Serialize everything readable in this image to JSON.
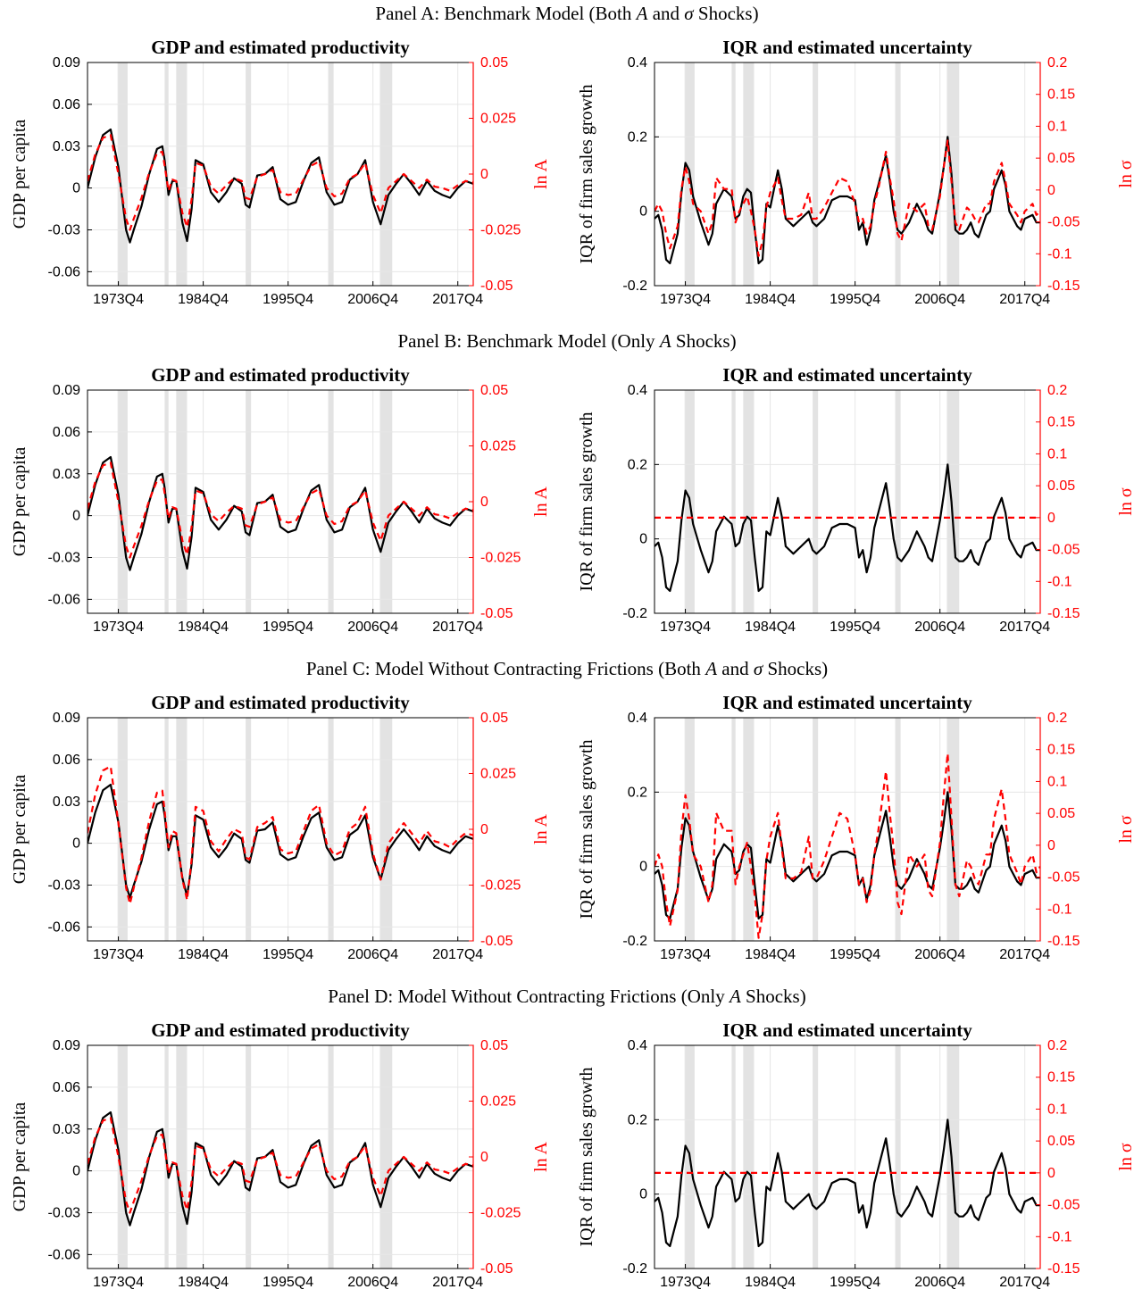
{
  "panels": [
    {
      "title": "Panel A: Benchmark Model (Both A and σ Shocks)",
      "left_red_dashed": "full",
      "right_red_dashed": "full"
    },
    {
      "title": "Panel B: Benchmark Model (Only A Shocks)",
      "left_red_dashed": "full",
      "right_red_dashed": "flat"
    },
    {
      "title": "Panel C: Model Without Contracting Frictions (Both A and σ Shocks)",
      "left_red_dashed": "amplified",
      "right_red_dashed": "amplified"
    },
    {
      "title": "Panel D: Model Without Contracting Frictions (Only A Shocks)",
      "left_red_dashed": "full",
      "right_red_dashed": "flat"
    }
  ],
  "colors": {
    "black_series": "#000000",
    "red_series": "#ff0000",
    "recession_shade": "#e3e3e3",
    "grid": "#e6e6e6"
  },
  "chart_data": [
    {
      "type": "line",
      "title": "GDP and estimated productivity",
      "ylabel": "GDP per capita",
      "ylabel_right": "ln A",
      "xlim": [
        1970.0,
        2020.0
      ],
      "ylim": [
        -0.07,
        0.09
      ],
      "ylim_right": [
        -0.05,
        0.05
      ],
      "x_ticks": [
        1974.0,
        1985.0,
        1996.0,
        2007.0,
        2018.0
      ],
      "x_tick_labels": [
        "1973Q4",
        "1984Q4",
        "1995Q4",
        "2006Q4",
        "2017Q4"
      ],
      "y_ticks": [
        0.09,
        0.06,
        0.03,
        0,
        -0.03,
        -0.06
      ],
      "y_tick_labels": [
        "0.09",
        "0.06",
        "0.03",
        "0",
        "-0.03",
        "-0.06"
      ],
      "y_ticks_right": [
        0.05,
        0.025,
        0,
        -0.025,
        -0.05
      ],
      "y_tick_labels_right": [
        "0.05",
        "0.025",
        "0",
        "-0.025",
        "-0.05"
      ],
      "recessions": [
        [
          1973.9,
          1975.2
        ],
        [
          1980.0,
          1980.5
        ],
        [
          1981.5,
          1982.9
        ],
        [
          1990.5,
          1991.2
        ],
        [
          2001.2,
          2001.9
        ],
        [
          2007.9,
          2009.5
        ]
      ],
      "grid": true,
      "series": [
        {
          "style": "solid",
          "axis": "left",
          "x": [
            1970.0,
            1971.0,
            1972.0,
            1973.0,
            1974.0,
            1975.0,
            1975.5,
            1976.0,
            1977.0,
            1978.0,
            1979.0,
            1979.7,
            1980.0,
            1980.5,
            1981.0,
            1981.5,
            1982.3,
            1982.9,
            1983.5,
            1984.0,
            1985.0,
            1986.0,
            1987.0,
            1988.0,
            1989.0,
            1990.0,
            1990.5,
            1991.0,
            1992.0,
            1993.0,
            1994.0,
            1995.0,
            1996.0,
            1997.0,
            1998.0,
            1999.0,
            2000.0,
            2001.0,
            2002.0,
            2003.0,
            2004.0,
            2005.0,
            2006.0,
            2007.0,
            2008.0,
            2009.0,
            2010.0,
            2011.0,
            2012.0,
            2013.0,
            2014.0,
            2015.0,
            2016.0,
            2017.0,
            2018.0,
            2019.0,
            2020.0
          ],
          "y": [
            0.0,
            0.022,
            0.038,
            0.042,
            0.015,
            -0.03,
            -0.039,
            -0.03,
            -0.013,
            0.01,
            0.028,
            0.03,
            0.02,
            -0.005,
            0.005,
            0.005,
            -0.025,
            -0.038,
            -0.015,
            0.02,
            0.017,
            -0.003,
            -0.01,
            -0.003,
            0.007,
            0.003,
            -0.012,
            -0.014,
            0.009,
            0.01,
            0.015,
            -0.008,
            -0.012,
            -0.01,
            0.005,
            0.018,
            0.022,
            -0.003,
            -0.012,
            -0.01,
            0.006,
            0.01,
            0.02,
            -0.01,
            -0.026,
            -0.005,
            0.003,
            0.01,
            0.003,
            -0.005,
            0.005,
            -0.002,
            -0.005,
            -0.007,
            0.0,
            0.005,
            0.003
          ]
        },
        {
          "style": "dashed",
          "axis": "left",
          "x": [
            1970.0,
            1971.0,
            1972.0,
            1973.0,
            1974.0,
            1975.0,
            1975.5,
            1976.0,
            1977.0,
            1978.0,
            1979.0,
            1979.7,
            1980.0,
            1980.5,
            1981.0,
            1981.5,
            1982.3,
            1982.9,
            1983.5,
            1984.0,
            1985.0,
            1986.0,
            1987.0,
            1988.0,
            1989.0,
            1990.0,
            1990.5,
            1991.0,
            1992.0,
            1993.0,
            1994.0,
            1995.0,
            1996.0,
            1997.0,
            1998.0,
            1999.0,
            2000.0,
            2001.0,
            2002.0,
            2003.0,
            2004.0,
            2005.0,
            2006.0,
            2007.0,
            2008.0,
            2009.0,
            2010.0,
            2011.0,
            2012.0,
            2013.0,
            2014.0,
            2015.0,
            2016.0,
            2017.0,
            2018.0,
            2019.0,
            2020.0
          ],
          "y": [
            0.005,
            0.024,
            0.036,
            0.038,
            0.01,
            -0.022,
            -0.03,
            -0.022,
            -0.007,
            0.011,
            0.025,
            0.026,
            0.016,
            -0.002,
            0.006,
            0.005,
            -0.018,
            -0.028,
            -0.008,
            0.018,
            0.016,
            0.001,
            -0.004,
            0.002,
            0.007,
            0.005,
            -0.007,
            -0.008,
            0.008,
            0.01,
            0.013,
            -0.003,
            -0.005,
            -0.004,
            0.006,
            0.016,
            0.019,
            0.0,
            -0.006,
            -0.004,
            0.007,
            0.01,
            0.018,
            -0.005,
            -0.018,
            0.0,
            0.005,
            0.01,
            0.005,
            0.0,
            0.006,
            0.001,
            0.0,
            -0.002,
            0.002,
            0.005,
            0.004
          ]
        }
      ]
    },
    {
      "type": "line",
      "title": "IQR and estimated uncertainty",
      "ylabel": "IQR of firm sales growth",
      "ylabel_right": "ln σ",
      "xlim": [
        1970.0,
        2020.0
      ],
      "ylim": [
        -0.2,
        0.4
      ],
      "ylim_right": [
        -0.15,
        0.2
      ],
      "x_ticks": [
        1974.0,
        1985.0,
        1996.0,
        2007.0,
        2018.0
      ],
      "x_tick_labels": [
        "1973Q4",
        "1984Q4",
        "1995Q4",
        "2006Q4",
        "2017Q4"
      ],
      "y_ticks": [
        0.4,
        0.2,
        0,
        -0.2
      ],
      "y_tick_labels": [
        "0.4",
        "0.2",
        "0",
        "-0.2"
      ],
      "y_ticks_right": [
        0.2,
        0.15,
        0.1,
        0.05,
        0,
        -0.05,
        -0.1,
        -0.15
      ],
      "y_tick_labels_right": [
        "0.2",
        "0.15",
        "0.1",
        "0.05",
        "0",
        "-0.05",
        "-0.1",
        "-0.15"
      ],
      "recessions": [
        [
          1973.9,
          1975.2
        ],
        [
          1980.0,
          1980.5
        ],
        [
          1981.5,
          1982.9
        ],
        [
          1990.5,
          1991.2
        ],
        [
          2001.2,
          2001.9
        ],
        [
          2007.9,
          2009.5
        ]
      ],
      "grid": true,
      "series": [
        {
          "style": "solid",
          "axis": "left",
          "x": [
            1970.0,
            1970.5,
            1971.0,
            1971.5,
            1972.0,
            1973.0,
            1973.5,
            1974.0,
            1974.5,
            1975.0,
            1976.0,
            1977.0,
            1977.5,
            1978.0,
            1979.0,
            1980.0,
            1980.5,
            1981.0,
            1981.5,
            1982.0,
            1982.5,
            1983.0,
            1983.5,
            1984.0,
            1984.5,
            1985.0,
            1986.0,
            1986.5,
            1987.0,
            1988.0,
            1989.0,
            1990.0,
            1990.5,
            1991.0,
            1992.0,
            1993.0,
            1994.0,
            1995.0,
            1996.0,
            1996.5,
            1997.0,
            1997.5,
            1998.0,
            1998.5,
            1999.0,
            2000.0,
            2000.5,
            2001.0,
            2001.5,
            2002.0,
            2003.0,
            2004.0,
            2005.0,
            2005.5,
            2006.0,
            2007.0,
            2007.5,
            2008.0,
            2008.5,
            2009.0,
            2009.5,
            2010.0,
            2010.5,
            2011.0,
            2011.5,
            2012.0,
            2013.0,
            2013.5,
            2014.0,
            2015.0,
            2015.5,
            2016.0,
            2017.0,
            2017.5,
            2018.0,
            2019.0,
            2019.5,
            2020.0
          ],
          "y": [
            -0.02,
            -0.01,
            -0.05,
            -0.13,
            -0.14,
            -0.06,
            0.05,
            0.13,
            0.11,
            0.04,
            -0.03,
            -0.09,
            -0.06,
            0.02,
            0.06,
            0.04,
            -0.02,
            -0.01,
            0.04,
            0.06,
            0.05,
            -0.05,
            -0.14,
            -0.13,
            0.02,
            0.01,
            0.11,
            0.06,
            -0.02,
            -0.04,
            -0.02,
            0.0,
            -0.03,
            -0.04,
            -0.02,
            0.03,
            0.04,
            0.04,
            0.03,
            -0.05,
            -0.03,
            -0.09,
            -0.05,
            0.03,
            0.07,
            0.15,
            0.08,
            0.0,
            -0.05,
            -0.06,
            -0.03,
            0.02,
            -0.02,
            -0.05,
            -0.06,
            0.05,
            0.12,
            0.2,
            0.1,
            -0.05,
            -0.06,
            -0.06,
            -0.05,
            -0.03,
            -0.06,
            -0.07,
            -0.01,
            0.0,
            0.06,
            0.11,
            0.07,
            0.0,
            -0.04,
            -0.05,
            -0.02,
            -0.01,
            -0.03,
            -0.03
          ]
        },
        {
          "style": "dashed",
          "axis": "left",
          "x": [
            1970.0,
            1970.5,
            1971.0,
            1971.5,
            1972.0,
            1973.0,
            1973.5,
            1974.0,
            1974.5,
            1975.0,
            1976.0,
            1977.0,
            1977.5,
            1978.0,
            1979.0,
            1980.0,
            1980.5,
            1981.0,
            1981.5,
            1982.0,
            1982.5,
            1983.0,
            1983.5,
            1984.0,
            1984.5,
            1985.0,
            1986.0,
            1986.5,
            1987.0,
            1988.0,
            1989.0,
            1990.0,
            1990.5,
            1991.0,
            1992.0,
            1993.0,
            1994.0,
            1995.0,
            1996.0,
            1996.5,
            1997.0,
            1997.5,
            1998.0,
            1998.5,
            1999.0,
            2000.0,
            2000.5,
            2001.0,
            2001.5,
            2002.0,
            2003.0,
            2004.0,
            2005.0,
            2005.5,
            2006.0,
            2007.0,
            2007.5,
            2008.0,
            2008.5,
            2009.0,
            2009.5,
            2010.0,
            2010.5,
            2011.0,
            2011.5,
            2012.0,
            2013.0,
            2013.5,
            2014.0,
            2015.0,
            2015.5,
            2016.0,
            2017.0,
            2017.5,
            2018.0,
            2019.0,
            2019.5,
            2020.0
          ],
          "y": [
            0.0,
            0.02,
            0.0,
            -0.06,
            -0.1,
            -0.04,
            0.06,
            0.12,
            0.08,
            0.02,
            0.0,
            -0.06,
            -0.03,
            0.09,
            0.06,
            0.06,
            -0.03,
            0.0,
            0.02,
            0.04,
            0.0,
            -0.05,
            -0.12,
            -0.08,
            0.01,
            0.05,
            0.09,
            0.03,
            -0.02,
            -0.02,
            -0.01,
            0.05,
            -0.02,
            -0.02,
            0.01,
            0.05,
            0.09,
            0.08,
            0.02,
            -0.03,
            -0.02,
            -0.06,
            -0.04,
            0.02,
            0.06,
            0.16,
            0.09,
            0.03,
            -0.06,
            -0.08,
            0.02,
            0.0,
            0.02,
            -0.04,
            -0.05,
            0.04,
            0.12,
            0.19,
            0.08,
            -0.03,
            -0.05,
            -0.02,
            0.01,
            0.0,
            -0.02,
            -0.03,
            0.02,
            0.02,
            0.08,
            0.13,
            0.08,
            0.02,
            -0.01,
            -0.03,
            0.0,
            0.02,
            -0.01,
            0.0
          ]
        }
      ]
    }
  ]
}
